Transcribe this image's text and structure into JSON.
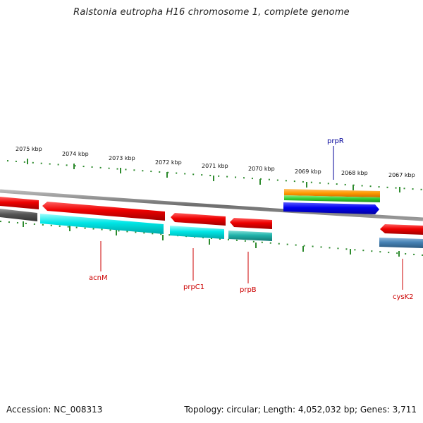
{
  "title": "Ralstonia eutropha H16 chromosome 1, complete genome",
  "footer": {
    "accession": "Accession: NC_008313",
    "summary": "Topology: circular; Length: 4,052,032 bp; Genes: 3,711"
  },
  "ticks": [
    {
      "label": "2075 kbp"
    },
    {
      "label": "2074 kbp"
    },
    {
      "label": "2073 kbp"
    },
    {
      "label": "2072 kbp"
    },
    {
      "label": "2071 kbp"
    },
    {
      "label": "2070 kbp"
    },
    {
      "label": "2069 kbp"
    },
    {
      "label": "2068 kbp"
    },
    {
      "label": "2067 kbp"
    }
  ],
  "genes": [
    {
      "name": "acnM",
      "color": "#cc0000"
    },
    {
      "name": "prpC1",
      "color": "#cc0000"
    },
    {
      "name": "prpB",
      "color": "#cc0000"
    },
    {
      "name": "prpR",
      "color": "#000099"
    },
    {
      "name": "cysK2",
      "color": "#cc0000"
    }
  ],
  "colors": {
    "backbone": "#8a8a8a",
    "tick": "#2e8b2e",
    "cds_red": "#ee0000",
    "cds_cyan": "#00e6e6",
    "cds_teal": "#20b2aa",
    "cds_gray": "#555555",
    "cds_orange": "#ff9900",
    "cds_green": "#33cc33",
    "cds_blue": "#0000ee",
    "cds_steel": "#4682b4"
  }
}
